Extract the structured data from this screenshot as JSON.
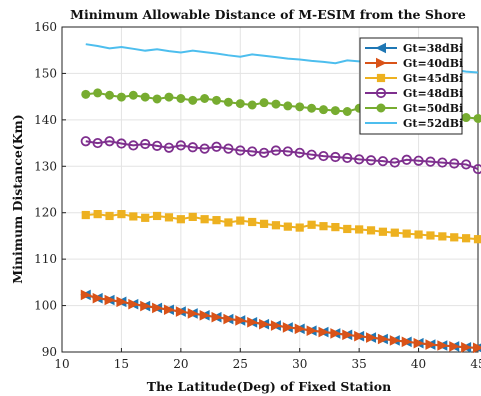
{
  "chart_data": {
    "type": "line",
    "title": "Minimum Allowable Distance of M-ESIM from the Shore",
    "xlabel": "The Latitude(Deg) of Fixed Station",
    "ylabel": "Minimum Distance(Km)",
    "xlim": [
      10,
      45
    ],
    "ylim": [
      90,
      160
    ],
    "xticks": [
      10,
      15,
      20,
      25,
      30,
      35,
      40,
      45
    ],
    "yticks": [
      90,
      100,
      110,
      120,
      130,
      140,
      150,
      160
    ],
    "grid": true,
    "legend_position": "top-right",
    "x": [
      12,
      13,
      14,
      15,
      16,
      17,
      18,
      19,
      20,
      21,
      22,
      23,
      24,
      25,
      26,
      27,
      28,
      29,
      30,
      31,
      32,
      33,
      34,
      35,
      36,
      37,
      38,
      39,
      40,
      41,
      42,
      43,
      44,
      45
    ],
    "series": [
      {
        "name": "Gt=38dBi",
        "color": "#1f77b4",
        "marker": "triangle-left",
        "values": [
          102.3,
          101.6,
          101.2,
          100.8,
          100.3,
          99.9,
          99.5,
          99.1,
          98.7,
          98.3,
          97.9,
          97.5,
          97.1,
          96.8,
          96.4,
          96.0,
          95.7,
          95.3,
          95.0,
          94.6,
          94.3,
          94.0,
          93.7,
          93.4,
          93.1,
          92.8,
          92.5,
          92.2,
          91.9,
          91.6,
          91.4,
          91.2,
          91.0,
          90.9
        ]
      },
      {
        "name": "Gt=40dBi",
        "color": "#d95319",
        "marker": "triangle-right",
        "values": [
          102.3,
          101.6,
          101.2,
          100.8,
          100.3,
          99.9,
          99.5,
          99.1,
          98.7,
          98.3,
          97.9,
          97.5,
          97.1,
          96.8,
          96.4,
          96.0,
          95.7,
          95.3,
          95.0,
          94.6,
          94.3,
          94.0,
          93.7,
          93.4,
          93.1,
          92.8,
          92.5,
          92.2,
          91.9,
          91.6,
          91.4,
          91.2,
          91.0,
          90.9
        ]
      },
      {
        "name": "Gt=45dBi",
        "color": "#edb120",
        "marker": "square",
        "values": [
          119.5,
          119.7,
          119.3,
          119.7,
          119.2,
          118.9,
          119.3,
          119.0,
          118.6,
          119.1,
          118.6,
          118.4,
          117.9,
          118.3,
          118.0,
          117.6,
          117.3,
          117.0,
          116.8,
          117.4,
          117.1,
          116.9,
          116.5,
          116.4,
          116.2,
          115.9,
          115.7,
          115.5,
          115.3,
          115.1,
          114.9,
          114.7,
          114.5,
          114.3
        ]
      },
      {
        "name": "Gt=48dBi",
        "color": "#7e2f8e",
        "marker": "circle",
        "values": [
          135.4,
          135.0,
          135.4,
          134.9,
          134.5,
          134.8,
          134.4,
          134.0,
          134.5,
          134.1,
          133.8,
          134.2,
          133.8,
          133.4,
          133.2,
          132.9,
          133.4,
          133.2,
          132.9,
          132.5,
          132.2,
          132.0,
          131.8,
          131.5,
          131.3,
          131.1,
          130.8,
          131.4,
          131.2,
          131.0,
          130.8,
          130.6,
          130.4,
          129.4
        ]
      },
      {
        "name": "Gt=50dBi",
        "color": "#77ac30",
        "marker": "circle-filled",
        "values": [
          145.5,
          145.8,
          145.3,
          144.9,
          145.3,
          144.9,
          144.5,
          144.9,
          144.6,
          144.2,
          144.6,
          144.2,
          143.8,
          143.5,
          143.2,
          143.7,
          143.4,
          143.0,
          142.8,
          142.5,
          142.2,
          142.0,
          141.8,
          142.5,
          142.2,
          141.9,
          141.6,
          141.4,
          141.1,
          140.8,
          140.6,
          140.4,
          140.5,
          140.3
        ]
      },
      {
        "name": "Gt=52dBi",
        "color": "#4dbeee",
        "marker": "none",
        "values": [
          156.3,
          155.9,
          155.4,
          155.7,
          155.3,
          154.9,
          155.2,
          154.8,
          154.5,
          154.9,
          154.6,
          154.3,
          153.9,
          153.6,
          154.1,
          153.8,
          153.5,
          153.2,
          153.0,
          152.7,
          152.5,
          152.2,
          152.8,
          152.6,
          152.4,
          152.2,
          151.9,
          151.7,
          151.5,
          151.3,
          151.1,
          150.8,
          150.4,
          150.2
        ]
      }
    ]
  }
}
